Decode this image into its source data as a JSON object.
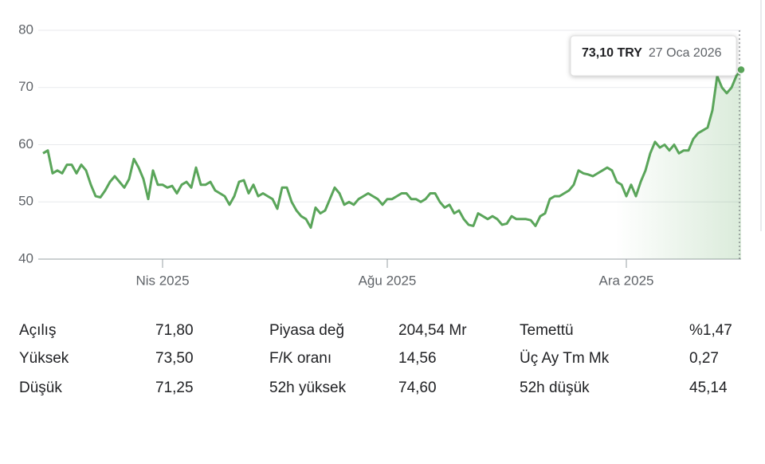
{
  "chart_data": {
    "type": "line",
    "values": [
      58.5,
      59,
      55,
      55.5,
      55,
      56.5,
      56.5,
      55,
      56.5,
      55.5,
      53,
      51,
      50.8,
      52,
      53.5,
      54.5,
      53.5,
      52.5,
      54,
      57.5,
      56,
      54,
      50.5,
      55.5,
      53,
      53,
      52.5,
      52.8,
      51.5,
      53,
      53.5,
      52.5,
      56,
      53,
      53,
      53.5,
      52,
      51.5,
      51,
      49.5,
      51,
      53.5,
      53.8,
      51.5,
      53,
      51,
      51.5,
      51,
      50.5,
      48.8,
      52.5,
      52.5,
      50,
      48.5,
      47.5,
      47,
      45.5,
      49,
      48,
      48.5,
      50.5,
      52.5,
      51.5,
      49.5,
      50,
      49.5,
      50.5,
      51,
      51.5,
      51,
      50.5,
      49.5,
      50.5,
      50.5,
      51,
      51.5,
      51.5,
      50.5,
      50.5,
      50,
      50.5,
      51.5,
      51.5,
      50,
      49,
      49.5,
      48,
      48.5,
      47,
      46,
      45.8,
      48,
      47.5,
      47,
      47.5,
      47,
      46,
      46.2,
      47.5,
      47,
      47,
      47,
      46.8,
      45.8,
      47.5,
      48,
      50.5,
      51,
      51,
      51.5,
      52,
      53,
      55.5,
      55,
      54.8,
      54.5,
      55,
      55.5,
      56,
      55.5,
      53.5,
      53,
      51,
      53,
      51,
      53.5,
      55.5,
      58.5,
      60.5,
      59.5,
      60,
      59,
      60,
      58.5,
      59,
      59,
      61,
      62,
      62.5,
      63,
      66,
      72,
      70,
      69,
      70,
      72,
      73.1
    ],
    "color": "#5aa55a",
    "xlim": [
      0,
      146
    ],
    "xticks": [
      {
        "value": 25,
        "label": "Nis 2025"
      },
      {
        "value": 72,
        "label": "Ağu 2025"
      },
      {
        "value": 122,
        "label": "Ara 2025"
      }
    ],
    "ylim": [
      40,
      80
    ],
    "yticks": [
      40,
      50,
      60,
      70,
      80
    ],
    "grid": true,
    "tooltip": {
      "price": "73,10 TRY",
      "date": "27 Oca 2026"
    }
  },
  "stats": [
    [
      {
        "label": "Açılış",
        "value": "71,80"
      },
      {
        "label": "Piyasa değ",
        "value": "204,54 Mr"
      },
      {
        "label": "Temettü",
        "value": "%1,47"
      }
    ],
    [
      {
        "label": "Yüksek",
        "value": "73,50"
      },
      {
        "label": "F/K oranı",
        "value": "14,56"
      },
      {
        "label": "Üç Ay Tm Mk",
        "value": "0,27"
      }
    ],
    [
      {
        "label": "Düşük",
        "value": "71,25"
      },
      {
        "label": "52h yüksek",
        "value": "74,60"
      },
      {
        "label": "52h düşük",
        "value": "45,14"
      }
    ]
  ]
}
